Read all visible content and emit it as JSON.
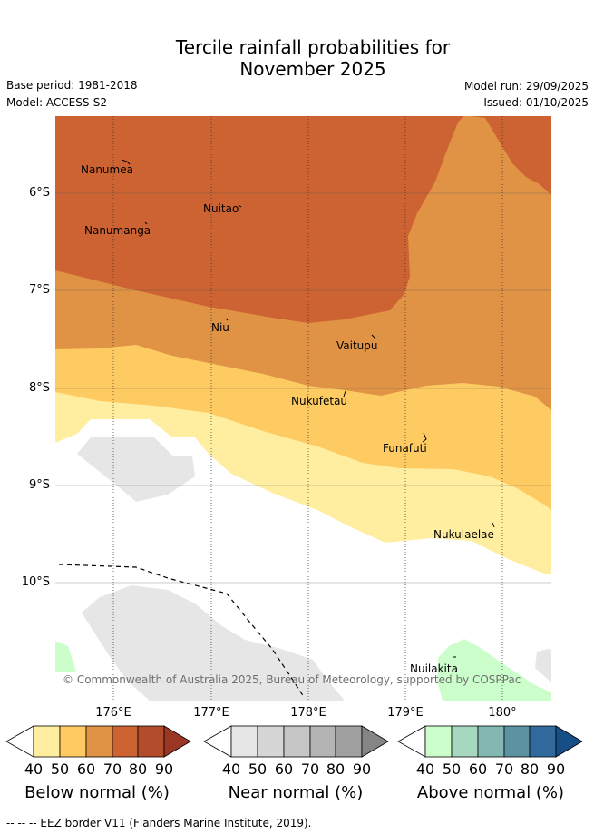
{
  "header": {
    "title_line1": "Tercile rainfall probabilities for",
    "title_line2": "November 2025",
    "base_period": "Base period: 1981-2018",
    "model": "Model: ACCESS-S2",
    "model_run": "Model run: 29/09/2025",
    "issued": "Issued: 01/10/2025"
  },
  "map": {
    "lat_labels": [
      "6°S",
      "7°S",
      "8°S",
      "9°S",
      "10°S"
    ],
    "lon_labels": [
      "176°E",
      "177°E",
      "178°E",
      "179°E",
      "180°"
    ],
    "islands": [
      "Nanumea",
      "Nuitao",
      "Nanumanga",
      "Niu",
      "Vaitupu",
      "Nukufetau",
      "Funafuti",
      "Nukulaelae",
      "Nuilakita"
    ],
    "copyright": "© Commonwealth of Australia 2025, Bureau of Meteorology, supported by COSPPac"
  },
  "legend": {
    "ticks": [
      "40",
      "50",
      "60",
      "70",
      "80",
      "90"
    ],
    "below": {
      "title": "Below normal (%)",
      "colors": [
        "#ffffff",
        "#ffeea0",
        "#fecb63",
        "#e09344",
        "#cd6332",
        "#b24c2c",
        "#9b3624"
      ]
    },
    "near": {
      "title": "Near normal (%)",
      "colors": [
        "#ffffff",
        "#e6e6e6",
        "#d6d6d6",
        "#c6c6c6",
        "#b4b4b4",
        "#a0a0a0",
        "#858585"
      ]
    },
    "above": {
      "title": "Above normal (%)",
      "colors": [
        "#ffffff",
        "#ccfecc",
        "#a6d8c0",
        "#82b8b1",
        "#5b93a1",
        "#326a9e",
        "#174e86"
      ]
    }
  },
  "footer": {
    "eez_note": "--  --  -- EEZ border V11 (Flanders Marine Institute, 2019)."
  }
}
